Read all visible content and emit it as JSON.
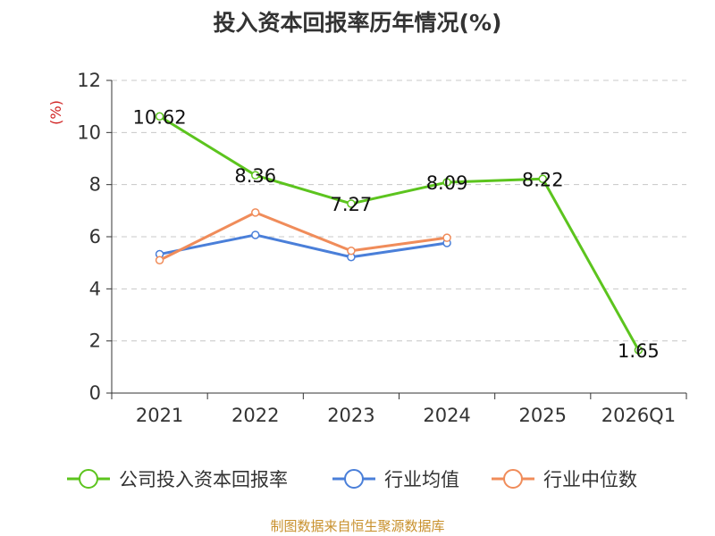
{
  "chart_data": {
    "type": "line",
    "title": "投入资本回报率历年情况(%)",
    "ylabel": "(%)",
    "categories": [
      "2021",
      "2022",
      "2023",
      "2024",
      "2025",
      "2026Q1"
    ],
    "ylim": [
      0,
      12
    ],
    "yticks": [
      "0",
      "2",
      "4",
      "6",
      "8",
      "10",
      "12"
    ],
    "grid": true,
    "legend_position": "bottom",
    "series": [
      {
        "name": "公司投入资本回报率",
        "color": "#5cc41e",
        "values": [
          10.62,
          8.36,
          7.27,
          8.09,
          8.22,
          1.65
        ],
        "labels": [
          "10.62",
          "8.36",
          "7.27",
          "8.09",
          "8.22",
          "1.65"
        ]
      },
      {
        "name": "行业均值",
        "color": "#4a7fd9",
        "values": [
          5.33,
          6.07,
          5.22,
          5.76,
          null,
          null
        ]
      },
      {
        "name": "行业中位数",
        "color": "#f08c5a",
        "values": [
          5.1,
          6.93,
          5.46,
          5.96,
          null,
          null
        ]
      }
    ]
  },
  "source": "制图数据来自恒生聚源数据库"
}
